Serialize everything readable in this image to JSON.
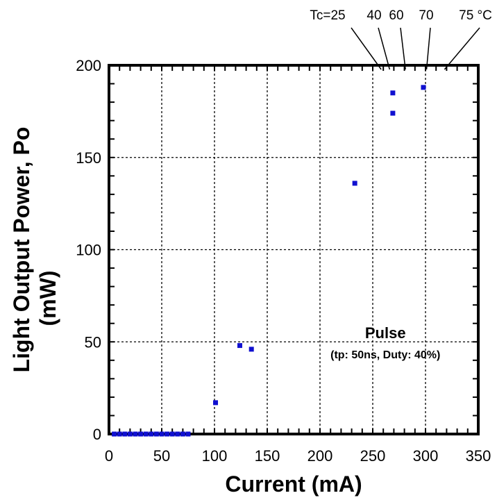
{
  "chart_data": {
    "type": "scatter",
    "xlabel": "Current (mA)",
    "ylabel": [
      "Light Output Power, Po",
      "(mW)"
    ],
    "xlim": [
      0,
      350
    ],
    "ylim": [
      0,
      200
    ],
    "xticks": [
      0,
      50,
      100,
      150,
      200,
      250,
      300,
      350
    ],
    "yticks": [
      0,
      50,
      100,
      150,
      200
    ],
    "grid": true,
    "marker_color": "#1010d0",
    "series": [
      {
        "x": [
          5,
          10,
          15,
          20,
          25,
          30,
          35,
          40,
          45,
          50,
          55,
          60,
          65,
          70,
          75,
          101,
          124,
          135,
          233,
          269,
          269,
          298
        ],
        "y": [
          0,
          0,
          0,
          0,
          0,
          0,
          0,
          0,
          0,
          0,
          0,
          0,
          0,
          0,
          0,
          17,
          48,
          46,
          136,
          174,
          185,
          188
        ]
      }
    ],
    "annotations": {
      "main": "Pulse",
      "sub": "(tp: 50ns, Duty: 40%)"
    },
    "temperature_labels": [
      {
        "text": "Tc=25",
        "x": 258
      },
      {
        "text": "40",
        "x": 266
      },
      {
        "text": "60",
        "x": 281
      },
      {
        "text": "70",
        "x": 301
      },
      {
        "text": "75 °C",
        "x": 318
      }
    ]
  }
}
